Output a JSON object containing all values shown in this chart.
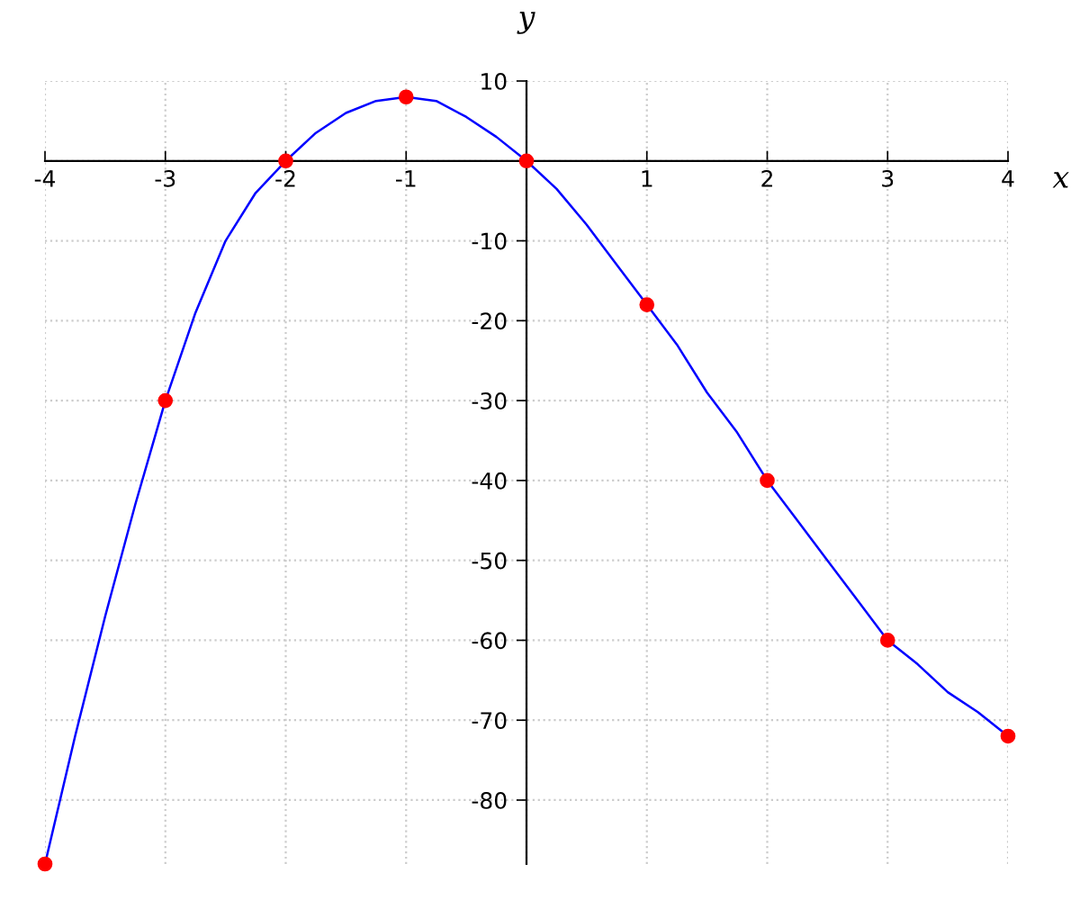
{
  "chart_data": {
    "type": "line",
    "xlabel": "x",
    "ylabel": "y",
    "x": [
      -4,
      -3,
      -2,
      -1,
      0,
      1,
      2,
      3,
      4
    ],
    "series": [
      {
        "color": "#0000ff",
        "x": [
          -4,
          -3.75,
          -3.5,
          -3.25,
          -3,
          -2.75,
          -2.5,
          -2.25,
          -2,
          -1.75,
          -1.5,
          -1.25,
          -1,
          -0.75,
          -0.5,
          -0.25,
          0,
          0.25,
          0.5,
          0.75,
          1,
          1.25,
          1.5,
          1.75,
          2,
          2.25,
          2.5,
          2.75,
          3,
          3.25,
          3.5,
          3.75,
          4
        ],
        "values": [
          -88,
          -72,
          -57,
          -43,
          -30,
          -19,
          -10,
          -4,
          0,
          3.5,
          6,
          7.5,
          8,
          7.5,
          5.5,
          3,
          0,
          -3.5,
          -8,
          -13,
          -18,
          -23,
          -29,
          -34,
          -40,
          -45,
          -50,
          -55,
          -60,
          -63,
          -66.5,
          -69,
          -72
        ]
      },
      {
        "type": "scatter",
        "color": "#ff0000",
        "values": [
          -88,
          -30,
          0,
          8,
          0,
          -18,
          -40,
          -60,
          -72
        ],
        "marker": "circle"
      }
    ],
    "xlim": [
      -4,
      4
    ],
    "xticks": [
      -4,
      -3,
      -2,
      -1,
      {
        "value": 0,
        "label": null
      },
      1,
      2,
      3,
      4
    ],
    "ylim": [
      -88,
      10
    ],
    "yticks": [
      {
        "value": -80,
        "label": "-80"
      },
      {
        "value": -70,
        "label": "-70"
      },
      {
        "value": -60,
        "label": "-60"
      },
      {
        "value": -50,
        "label": "-50"
      },
      {
        "value": -40,
        "label": "-40"
      },
      {
        "value": -30,
        "label": "-30"
      },
      {
        "value": -20,
        "label": "-20"
      },
      {
        "value": -10,
        "label": "-10"
      },
      {
        "value": 0,
        "label": null
      },
      10
    ],
    "grid": true
  }
}
